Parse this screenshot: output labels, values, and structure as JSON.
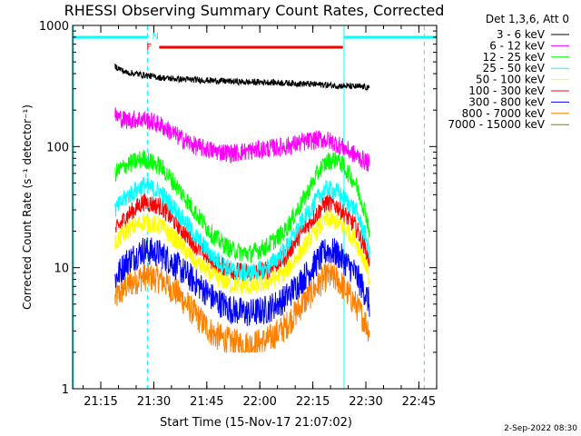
{
  "chart_data": {
    "type": "line",
    "title": "RHESSI Observing Summary Count Rates, Corrected",
    "xlabel": "Start Time (15-Nov-17 21:07:02)",
    "ylabel": "Corrected Count Rate (s⁻¹ detector⁻¹)",
    "yscale": "log",
    "ylim": [
      1,
      1000
    ],
    "xlim_minutes": [
      0,
      103
    ],
    "x_ticks": [
      {
        "label": "21:15",
        "minute": 7.97
      },
      {
        "label": "21:30",
        "minute": 22.97
      },
      {
        "label": "21:45",
        "minute": 37.97
      },
      {
        "label": "22:00",
        "minute": 52.97
      },
      {
        "label": "22:15",
        "minute": 67.97
      },
      {
        "label": "22:30",
        "minute": 82.97
      },
      {
        "label": "22:45",
        "minute": 97.97
      }
    ],
    "y_ticks": [
      {
        "label": "1",
        "value": 1
      },
      {
        "label": "10",
        "value": 10
      },
      {
        "label": "100",
        "value": 100
      },
      {
        "label": "1000",
        "value": 1000
      }
    ],
    "legend_header": "Det 1,3,6, Att 0",
    "time_minutes": [
      12,
      15,
      20,
      25,
      30,
      35,
      40,
      45,
      50,
      55,
      60,
      65,
      70,
      72,
      75,
      80,
      83,
      84
    ],
    "series": [
      {
        "name": "3 - 6 keV",
        "color": "#000000",
        "values": [
          460,
          410,
          390,
          370,
          360,
          355,
          350,
          345,
          340,
          340,
          335,
          330,
          325,
          322,
          318,
          312,
          310,
          300
        ]
      },
      {
        "name": "6 - 12 keV",
        "color": "#ff00ff",
        "values": [
          180,
          165,
          170,
          150,
          120,
          100,
          92,
          88,
          92,
          96,
          100,
          108,
          115,
          113,
          105,
          85,
          75,
          72
        ]
      },
      {
        "name": "12 - 25 keV",
        "color": "#00ff00",
        "values": [
          60,
          70,
          80,
          68,
          45,
          28,
          18,
          14,
          13,
          15,
          20,
          35,
          65,
          75,
          80,
          50,
          28,
          20
        ]
      },
      {
        "name": "25 - 50 keV",
        "color": "#00ffff",
        "values": [
          30,
          38,
          48,
          42,
          28,
          18,
          12,
          9.5,
          9,
          10,
          14,
          24,
          40,
          45,
          42,
          30,
          18,
          13
        ]
      },
      {
        "name": "50 - 100 keV",
        "color": "#ffff00",
        "values": [
          16,
          20,
          24,
          22,
          16,
          11,
          8.5,
          7.2,
          7,
          7.5,
          9,
          14,
          22,
          25,
          24,
          17,
          11,
          8
        ]
      },
      {
        "name": "100 - 300 keV",
        "color": "#ff0000",
        "values": [
          20,
          26,
          35,
          32,
          22,
          15,
          11,
          9.5,
          9,
          9.5,
          12,
          20,
          30,
          35,
          32,
          22,
          14,
          11
        ]
      },
      {
        "name": "300 - 800 keV",
        "color": "#0000ff",
        "values": [
          8,
          11,
          14,
          13,
          10,
          7.5,
          5.5,
          4.5,
          4.2,
          4.5,
          5.5,
          8,
          12,
          14,
          13,
          9,
          6,
          5
        ]
      },
      {
        "name": "800 - 7000 keV",
        "color": "#ff8000",
        "values": [
          5.5,
          7,
          8.5,
          8,
          6,
          4,
          2.8,
          2.4,
          2.3,
          2.5,
          3.2,
          5,
          7.5,
          8.5,
          8,
          5,
          3.5,
          3
        ]
      },
      {
        "name": "7000 - 15000 keV",
        "color": "#808000",
        "values": []
      }
    ],
    "annotations": [
      {
        "text": "F",
        "color": "#ff0000",
        "start_minute": 24.5,
        "end_minute": 76.5,
        "value": 660
      },
      {
        "text": "N",
        "color": "#00ffff"
      }
    ],
    "night_bars": [
      {
        "start_minute": 0,
        "end_minute": 21.2,
        "color": "#00ffff"
      },
      {
        "start_minute": 76.8,
        "end_minute": 103,
        "color": "#00ffff"
      }
    ],
    "vertical_lines": [
      {
        "minute": 21.2,
        "style": "dashed",
        "color": "#00ffff"
      },
      {
        "minute": 76.8,
        "style": "solid",
        "color": "#00ffff"
      },
      {
        "minute": 99.5,
        "style": "dashed",
        "color": "#00ffff"
      }
    ],
    "footer_date": "2-Sep-2022 08:30"
  }
}
